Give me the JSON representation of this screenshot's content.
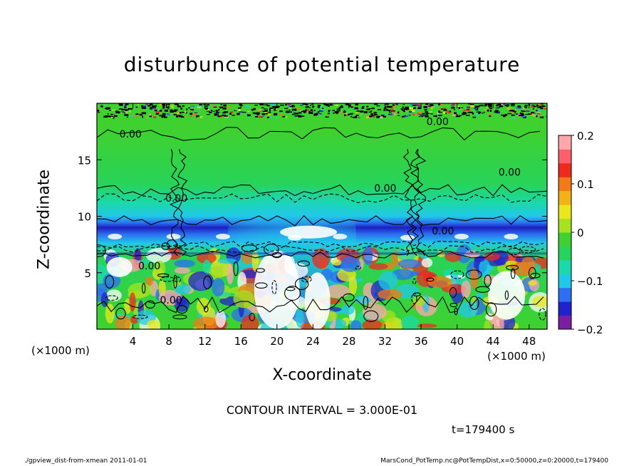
{
  "figure": {
    "title": "disturbunce of potential temperature",
    "x_unit": "(×1000 m)",
    "x_unit_right": "(×1000 m)",
    "contour_interval": "CONTOUR INTERVAL = 3.000E-01",
    "time": "t=179400 s",
    "footer_left": "./gpview_dist-from-xmean  2011-01-01",
    "footer_right": "MarsCond_PotTemp.nc@PotTempDist,x=0:50000,z=0:20000,t=179400"
  },
  "chart_data": {
    "type": "heatmap",
    "title": "disturbunce of potential temperature",
    "xlabel": "X-coordinate",
    "ylabel": "Z-coordinate",
    "xlim": [
      0,
      50
    ],
    "ylim": [
      0,
      20
    ],
    "x_ticks": [
      4,
      8,
      12,
      16,
      20,
      24,
      28,
      32,
      36,
      40,
      44,
      48
    ],
    "y_ticks": [
      5,
      10,
      15
    ],
    "colorbar": {
      "range": [
        -0.2,
        0.2
      ],
      "ticks": [
        {
          "value": 0.2,
          "label": "0.2"
        },
        {
          "value": 0.1,
          "label": "0.1"
        },
        {
          "value": 0,
          "label": "0"
        },
        {
          "value": -0.1,
          "label": "−0.1"
        },
        {
          "value": -0.2,
          "label": "−0.2"
        }
      ],
      "colors": [
        "#7a1fa2",
        "#2222cc",
        "#2c6ff0",
        "#21c8e8",
        "#1bd9a8",
        "#27d35a",
        "#3fd12f",
        "#a6e21f",
        "#e8e81c",
        "#f2b21a",
        "#f27a18",
        "#ee2a1e",
        "#ff5f6a",
        "#ffa8ac"
      ]
    },
    "contour_labels": [
      {
        "x": 2.5,
        "z": 17.3,
        "label": "0.00"
      },
      {
        "x": 36.6,
        "z": 18.4,
        "label": "0.00"
      },
      {
        "x": 44.6,
        "z": 13.9,
        "label": "0.00"
      },
      {
        "x": 30.8,
        "z": 12.5,
        "label": "0.00"
      },
      {
        "x": 7.6,
        "z": 11.6,
        "label": "0.00"
      },
      {
        "x": 37.2,
        "z": 8.7,
        "label": "0.00"
      },
      {
        "x": 4.6,
        "z": 5.6,
        "label": "0.00"
      },
      {
        "x": 7.0,
        "z": 2.6,
        "label": "0.00"
      }
    ],
    "field_bands": [
      {
        "z": [
          0,
          7
        ],
        "description": "strong mixed positive/negative disturbances"
      },
      {
        "z": [
          7,
          9.5
        ],
        "value": -0.12
      },
      {
        "z": [
          9.5,
          19
        ],
        "value": 0.0
      },
      {
        "z": [
          19,
          20
        ],
        "value": "noisy"
      }
    ]
  }
}
